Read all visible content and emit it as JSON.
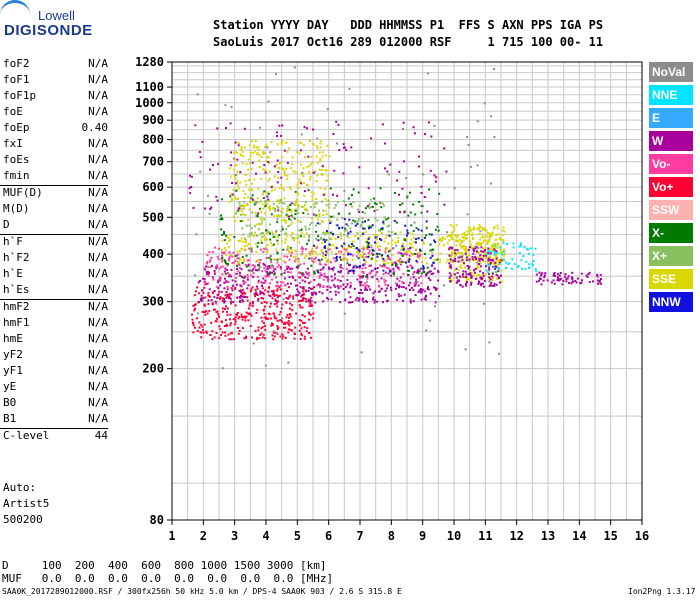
{
  "logo": {
    "top": "Lowell",
    "main": "DIGISONDE"
  },
  "header": {
    "labels": "Station YYYY DAY   DDD HHMMSS P1  FFS S AXN PPS IGA PS",
    "values": "SaoLuis 2017 Oct16 289 012000 RSF     1 715 100 00- 11"
  },
  "params": [
    {
      "name": "foF2",
      "value": "N/A"
    },
    {
      "name": "foF1",
      "value": "N/A"
    },
    {
      "name": "foF1p",
      "value": "N/A"
    },
    {
      "name": "foE",
      "value": "N/A"
    },
    {
      "name": "foEp",
      "value": "0.40"
    },
    {
      "name": "fxI",
      "value": "N/A"
    },
    {
      "name": "foEs",
      "value": "N/A"
    },
    {
      "name": "fmin",
      "value": "N/A"
    },
    {
      "name": "MUF(D)",
      "value": "N/A"
    },
    {
      "name": "M(D)",
      "value": "N/A"
    },
    {
      "name": "D",
      "value": "N/A"
    },
    {
      "name": "h`F",
      "value": "N/A"
    },
    {
      "name": "h`F2",
      "value": "N/A"
    },
    {
      "name": "h`E",
      "value": "N/A"
    },
    {
      "name": "h`Es",
      "value": "N/A"
    },
    {
      "name": "hmF2",
      "value": "N/A"
    },
    {
      "name": "hmF1",
      "value": "N/A"
    },
    {
      "name": "hmE",
      "value": "N/A"
    },
    {
      "name": "yF2",
      "value": "N/A"
    },
    {
      "name": "yF1",
      "value": "N/A"
    },
    {
      "name": "yE",
      "value": "N/A"
    },
    {
      "name": "B0",
      "value": "N/A"
    },
    {
      "name": "B1",
      "value": "N/A"
    },
    {
      "name": "C-level",
      "value": "44"
    }
  ],
  "auto": {
    "line1": "Auto:",
    "line2": "Artist5",
    "line3": "500200"
  },
  "legend": [
    {
      "label": "NoVal",
      "color": "#8c8c8c"
    },
    {
      "label": "NNE",
      "color": "#00e5ff"
    },
    {
      "label": "E",
      "color": "#33aaff"
    },
    {
      "label": "W",
      "color": "#a8009c"
    },
    {
      "label": "Vo-",
      "color": "#ff3ca0"
    },
    {
      "label": "Vo+",
      "color": "#ff0033"
    },
    {
      "label": "SSW",
      "color": "#ffb0b0"
    },
    {
      "label": "X-",
      "color": "#007a00"
    },
    {
      "label": "X+",
      "color": "#88c060"
    },
    {
      "label": "SSE",
      "color": "#d8d800"
    },
    {
      "label": "NNW",
      "color": "#1010e0"
    }
  ],
  "bottom": {
    "d_line": "D     100  200  400  600  800 1000 1500 3000 [km]",
    "muf_line": "MUF   0.0  0.0  0.0  0.0  0.0  0.0  0.0  0.0 [MHz]"
  },
  "footer": {
    "left": "SAA0K_2017289012000.RSF / 300fx256h 50 kHz 5.0 km / DPS-4 SAA0K 903 / 2.6 S 315.8 E",
    "right": "Ion2Png 1.3.17"
  },
  "chart_data": {
    "type": "scatter",
    "title": "",
    "xlabel": "",
    "ylabel": "",
    "xlim": [
      1,
      16
    ],
    "ylim": [
      80,
      1280
    ],
    "y_scale": "log",
    "x_ticks": [
      1,
      2,
      3,
      4,
      5,
      6,
      7,
      8,
      9,
      10,
      11,
      12,
      13,
      14,
      15,
      16
    ],
    "y_ticks": [
      80,
      200,
      300,
      400,
      500,
      600,
      700,
      800,
      900,
      1000,
      1100,
      1280
    ],
    "series_note": "ionogram echo traces; points colored by arrival direction (legend)",
    "clusters": [
      {
        "x": [
          1.6,
          5.5
        ],
        "y": [
          240,
          330
        ],
        "color": "Vo+",
        "n": 380
      },
      {
        "x": [
          1.8,
          9.5
        ],
        "y": [
          300,
          380
        ],
        "color": "W",
        "n": 420
      },
      {
        "x": [
          2.0,
          9.0
        ],
        "y": [
          330,
          420
        ],
        "color": "Vo-",
        "n": 320
      },
      {
        "x": [
          2.5,
          11.5
        ],
        "y": [
          380,
          460
        ],
        "color": "SSE",
        "n": 360
      },
      {
        "x": [
          3.0,
          8.0
        ],
        "y": [
          440,
          560
        ],
        "color": "X+",
        "n": 160
      },
      {
        "x": [
          2.8,
          6.0
        ],
        "y": [
          480,
          800
        ],
        "color": "SSE",
        "n": 300
      },
      {
        "x": [
          2.5,
          9.5
        ],
        "y": [
          350,
          600
        ],
        "color": "X-",
        "n": 200
      },
      {
        "x": [
          5.5,
          9.5
        ],
        "y": [
          360,
          500
        ],
        "color": "NNW",
        "n": 110
      },
      {
        "x": [
          9.8,
          11.6
        ],
        "y": [
          340,
          480
        ],
        "color": "SSE",
        "n": 220
      },
      {
        "x": [
          9.8,
          11.5
        ],
        "y": [
          330,
          420
        ],
        "color": "W",
        "n": 160
      },
      {
        "x": [
          11.0,
          12.6
        ],
        "y": [
          360,
          430
        ],
        "color": "NNE",
        "n": 60
      },
      {
        "x": [
          12.6,
          14.7
        ],
        "y": [
          335,
          360
        ],
        "color": "W",
        "n": 70
      },
      {
        "x": [
          1.5,
          9.8
        ],
        "y": [
          500,
          900
        ],
        "color": "W",
        "n": 120
      },
      {
        "x": [
          1.5,
          11.5
        ],
        "y": [
          200,
          1270
        ],
        "color": "NoVal",
        "n": 90
      }
    ]
  }
}
